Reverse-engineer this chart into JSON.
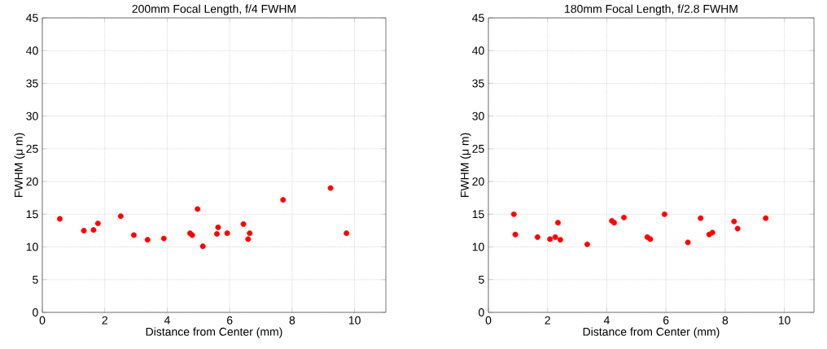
{
  "chart_data": [
    {
      "type": "scatter",
      "title": "200mm Focal Length, f/4 FWHM",
      "xlabel": "Distance from Center (mm)",
      "ylabel": "FWHM (μ m)",
      "x": [
        0.56,
        1.33,
        1.64,
        1.78,
        2.51,
        2.93,
        3.37,
        3.89,
        4.73,
        4.8,
        4.97,
        5.14,
        5.59,
        5.63,
        5.92,
        6.44,
        6.59,
        6.64,
        7.71,
        9.23,
        9.74
      ],
      "values": [
        14.3,
        12.5,
        12.6,
        13.6,
        14.7,
        11.8,
        11.1,
        11.3,
        12.1,
        11.8,
        15.8,
        10.1,
        12.0,
        13.0,
        12.1,
        13.5,
        11.2,
        12.1,
        17.2,
        19.0,
        12.1
      ],
      "color": "#ff0000",
      "marker": "circle",
      "grid": true,
      "xlim": [
        0,
        11
      ],
      "ylim": [
        0,
        45
      ],
      "xticks": [
        0,
        2,
        4,
        6,
        8,
        10
      ],
      "yticks": [
        0,
        5,
        10,
        15,
        20,
        25,
        30,
        35,
        40,
        45
      ]
    },
    {
      "type": "scatter",
      "title": "180mm Focal Length, f/2.8 FWHM",
      "xlabel": "Distance from Center (mm)",
      "ylabel": "FWHM (μ m)",
      "x": [
        0.86,
        0.91,
        1.66,
        2.08,
        2.26,
        2.35,
        2.43,
        3.34,
        4.17,
        4.25,
        4.58,
        5.37,
        5.47,
        5.95,
        6.74,
        7.17,
        7.46,
        7.57,
        8.3,
        8.42,
        9.37
      ],
      "values": [
        15.0,
        11.9,
        11.5,
        11.2,
        11.5,
        13.7,
        11.1,
        10.4,
        14.0,
        13.7,
        14.5,
        11.5,
        11.2,
        15.0,
        10.7,
        14.4,
        11.9,
        12.2,
        13.9,
        12.8,
        14.4
      ],
      "color": "#ff0000",
      "marker": "circle",
      "grid": true,
      "xlim": [
        0,
        11
      ],
      "ylim": [
        0,
        45
      ],
      "xticks": [
        0,
        2,
        4,
        6,
        8,
        10
      ],
      "yticks": [
        0,
        5,
        10,
        15,
        20,
        25,
        30,
        35,
        40,
        45
      ]
    }
  ]
}
